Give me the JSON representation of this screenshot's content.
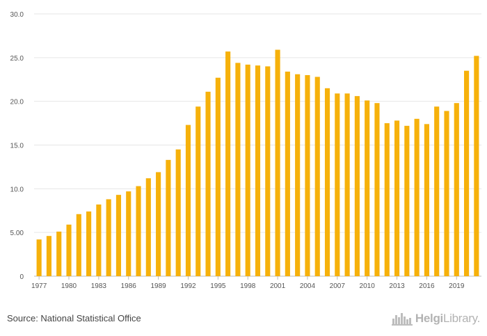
{
  "chart_data": {
    "type": "bar",
    "title": "",
    "xlabel": "",
    "ylabel": "",
    "ylim": [
      0,
      30
    ],
    "yticks": [
      "0",
      "5.00",
      "10.0",
      "15.0",
      "20.0",
      "25.0",
      "30.0"
    ],
    "ytick_values": [
      0,
      5,
      10,
      15,
      20,
      25,
      30
    ],
    "grid": true,
    "bar_color": "#f6b10b",
    "categories": [
      1977,
      1978,
      1979,
      1980,
      1981,
      1982,
      1983,
      1984,
      1985,
      1986,
      1987,
      1988,
      1989,
      1990,
      1991,
      1992,
      1993,
      1994,
      1995,
      1996,
      1997,
      1998,
      1999,
      2000,
      2001,
      2002,
      2003,
      2004,
      2005,
      2006,
      2007,
      2008,
      2009,
      2010,
      2011,
      2012,
      2013,
      2014,
      2015,
      2016,
      2017,
      2018,
      2019,
      2020,
      2021
    ],
    "xtick_labels": [
      "1977",
      "1980",
      "1983",
      "1986",
      "1989",
      "1992",
      "1995",
      "1998",
      "2001",
      "2004",
      "2007",
      "2010",
      "2013",
      "2016",
      "2019"
    ],
    "values": [
      4.2,
      4.6,
      5.1,
      5.9,
      7.1,
      7.4,
      8.2,
      8.8,
      9.3,
      9.7,
      10.3,
      11.2,
      11.9,
      13.3,
      14.5,
      17.3,
      19.4,
      21.1,
      22.7,
      25.7,
      24.4,
      24.2,
      24.1,
      24.0,
      25.9,
      23.4,
      23.1,
      23.0,
      22.8,
      21.5,
      20.9,
      20.9,
      20.6,
      20.1,
      19.8,
      17.5,
      17.8,
      17.2,
      18.0,
      17.4,
      19.4,
      18.9,
      19.8,
      23.5,
      25.2
    ]
  },
  "footer": {
    "source": "Source: National Statistical Office",
    "logo_part1": "Helgi",
    "logo_part2": "Library."
  }
}
